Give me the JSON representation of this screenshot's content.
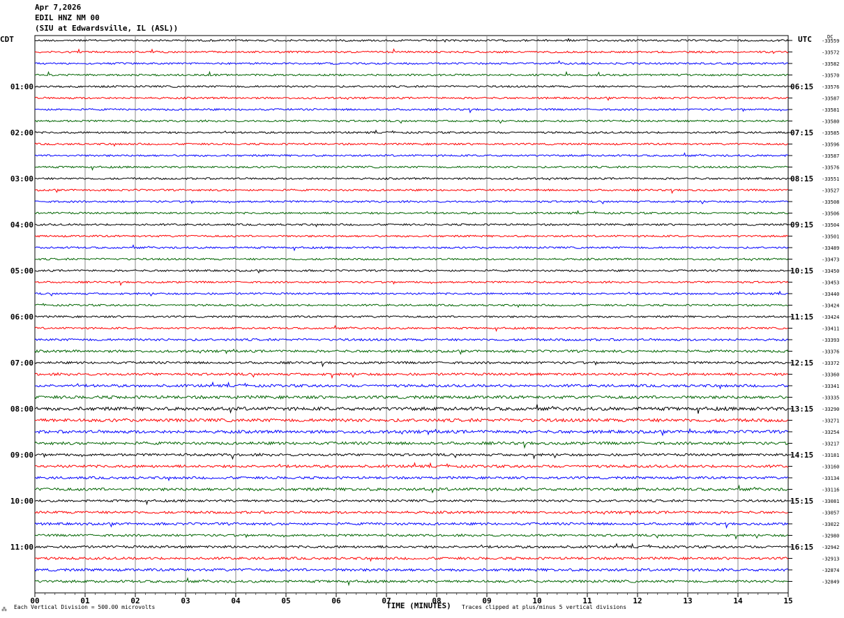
{
  "header": {
    "date": "Apr 7,2026",
    "station": "EDIL HNZ NM 00",
    "location": "(SIU at Edwardsville, IL  (ASL))"
  },
  "left_tz": "CDT",
  "right_tz": "UTC",
  "dc_label": "DC",
  "footer": {
    "scale_note": "Each Vertical Division =  500.00 microvolts",
    "clip_note": "Traces clipped at plus/minus 5 vertical divisions",
    "corner_mark": "⁂"
  },
  "colors": {
    "cycle": [
      "#000000",
      "#ff0000",
      "#0000ff",
      "#006400"
    ],
    "grid": "#888888"
  },
  "chart_data": {
    "type": "line",
    "title": "",
    "xlabel": "TIME (MINUTES)",
    "ylabel": "",
    "xlim": [
      0,
      15
    ],
    "x_ticks": [
      "00",
      "01",
      "02",
      "03",
      "04",
      "05",
      "06",
      "07",
      "08",
      "09",
      "10",
      "11",
      "12",
      "13",
      "14",
      "15"
    ],
    "left_hour_labels": [
      "01:00",
      "02:00",
      "03:00",
      "04:00",
      "05:00",
      "06:00",
      "07:00",
      "08:00",
      "09:00",
      "10:00",
      "11:00"
    ],
    "right_hour_labels": [
      "06:15",
      "07:15",
      "08:15",
      "09:15",
      "10:15",
      "11:15",
      "12:15",
      "13:15",
      "14:15",
      "15:15",
      "16:15"
    ],
    "trace_offsets": [
      -33559,
      -33572,
      -33582,
      -33570,
      -33576,
      -33587,
      -33581,
      -33580,
      -33585,
      -33596,
      -33587,
      -33576,
      -33551,
      -33527,
      -33508,
      -33506,
      -33504,
      -33501,
      -33489,
      -33473,
      -33450,
      -33453,
      -33440,
      -33424,
      -33424,
      -33411,
      -33393,
      -33376,
      -33372,
      -33360,
      -33341,
      -33335,
      -33290,
      -33271,
      -33254,
      -33217,
      -33181,
      -33160,
      -33134,
      -33116,
      -33081,
      -33057,
      -33022,
      -32980,
      -32942,
      -32913,
      -32874,
      -32849
    ],
    "trace_activity": [
      1,
      1,
      1,
      1,
      1,
      1,
      1,
      1,
      1,
      1,
      1,
      1,
      1,
      1,
      1,
      1,
      1,
      1,
      1,
      1,
      1,
      1,
      1,
      1,
      1,
      1,
      1.2,
      1.3,
      1.2,
      1.3,
      1.4,
      1.6,
      1.8,
      1.7,
      1.6,
      1.5,
      1.3,
      1.4,
      1.3,
      1.5,
      1.2,
      1.3,
      1.3,
      1.2,
      1.3,
      1.3,
      1.4,
      1.3
    ]
  }
}
